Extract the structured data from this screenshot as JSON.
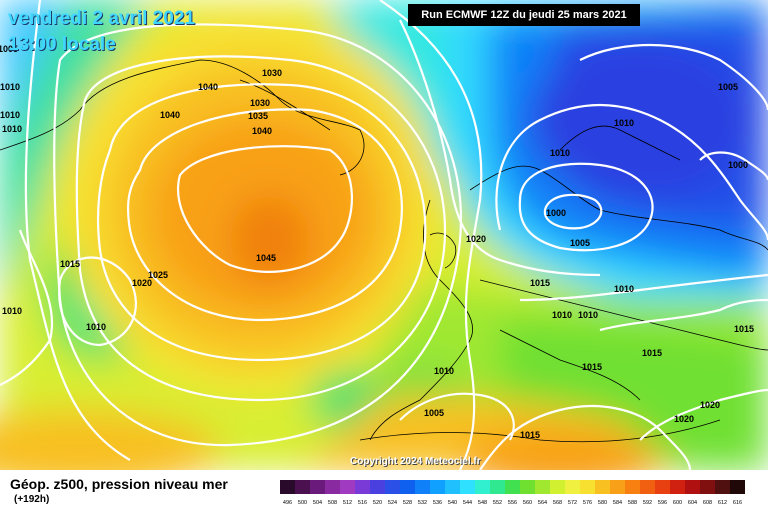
{
  "header": {
    "date": "vendredi 2 avril 2021",
    "time": "13:00 locale",
    "run": "Run ECMWF 12Z du jeudi 25 mars 2021"
  },
  "copyright": "Copyright 2024 Meteociel.fr",
  "legend": {
    "title": "Géop. z500, pression niveau mer",
    "subtitle": "(+192h)",
    "scale_values": [
      "496",
      "500",
      "504",
      "508",
      "512",
      "516",
      "520",
      "524",
      "528",
      "532",
      "536",
      "540",
      "544",
      "548",
      "552",
      "556",
      "560",
      "564",
      "568",
      "572",
      "576",
      "580",
      "584",
      "588",
      "592",
      "596",
      "600",
      "604",
      "608",
      "612",
      "616"
    ],
    "scale_colors": [
      "#2a0a2a",
      "#4a1050",
      "#6a1a7a",
      "#8a2aa0",
      "#a03ac0",
      "#7a3ad8",
      "#4a40e0",
      "#2a50e8",
      "#1060f0",
      "#1080f8",
      "#10a0ff",
      "#20c0ff",
      "#30e0ff",
      "#30f0d0",
      "#30e890",
      "#40e050",
      "#70e030",
      "#a0e830",
      "#d0f030",
      "#f0f040",
      "#f8e030",
      "#f8c020",
      "#f8a018",
      "#f88010",
      "#f06010",
      "#e84010",
      "#d02010",
      "#b01010",
      "#801010",
      "#501010",
      "#200808"
    ]
  },
  "isobar_labels": [
    "1040",
    "1030",
    "1030",
    "1035",
    "1040",
    "1040",
    "1045",
    "1015",
    "1025",
    "1020",
    "1010",
    "1010",
    "1005",
    "1010",
    "1020",
    "1015",
    "1010",
    "1010",
    "1010",
    "1010",
    "1000",
    "1005",
    "1005",
    "1010",
    "1000",
    "1010",
    "1015",
    "1015",
    "1015",
    "1015",
    "1020",
    "1020",
    "1010",
    "1005",
    "1010"
  ]
}
